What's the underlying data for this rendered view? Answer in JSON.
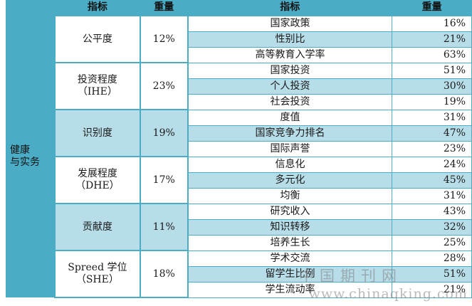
{
  "header": {
    "indicator_label": "指标",
    "weight_label": "重量",
    "sub_indicator_label": "指标",
    "sub_weight_label": "重量"
  },
  "category": "健康\n与实务",
  "groups": [
    {
      "name": "公平度",
      "weight": "12%",
      "shade": false,
      "items": [
        {
          "label": "国家政策",
          "weight": "16%"
        },
        {
          "label": "性别比",
          "weight": "21%"
        },
        {
          "label": "高等教育入学率",
          "weight": "63%"
        }
      ]
    },
    {
      "name": "投资程度\n（IHE）",
      "weight": "23%",
      "shade": false,
      "items": [
        {
          "label": "国家投资",
          "weight": "51%"
        },
        {
          "label": "个人投资",
          "weight": "30%"
        },
        {
          "label": "社会投资",
          "weight": "19%"
        }
      ]
    },
    {
      "name": "识别度",
      "weight": "19%",
      "shade": true,
      "items": [
        {
          "label": "度值",
          "weight": "31%"
        },
        {
          "label": "国家竞争力排名",
          "weight": "47%"
        },
        {
          "label": "国际声誉",
          "weight": "23%"
        }
      ]
    },
    {
      "name": "发展程度\n（DHE）",
      "weight": "17%",
      "shade": false,
      "items": [
        {
          "label": "信息化",
          "weight": "24%"
        },
        {
          "label": "多元化",
          "weight": "45%"
        },
        {
          "label": "均衡",
          "weight": "31%"
        }
      ]
    },
    {
      "name": "贡献度",
      "weight": "11%",
      "shade": true,
      "items": [
        {
          "label": "研究收入",
          "weight": "43%"
        },
        {
          "label": "知识转移",
          "weight": "32%"
        },
        {
          "label": "培养生长",
          "weight": "25%"
        }
      ]
    },
    {
      "name": "Spreed 学位\n（SHE）",
      "weight": "18%",
      "shade": false,
      "items": [
        {
          "label": "学术交流",
          "weight": "28%"
        },
        {
          "label": "留学生比例",
          "weight": "51%"
        },
        {
          "label": "学生流动率",
          "weight": "21%"
        }
      ]
    }
  ],
  "watermark": {
    "cn": "中国期刊网",
    "url": "www.chinaqking.com"
  },
  "colors": {
    "accent": "#4bacc6",
    "shade": "#b7dde8",
    "light": "#ffffff"
  }
}
